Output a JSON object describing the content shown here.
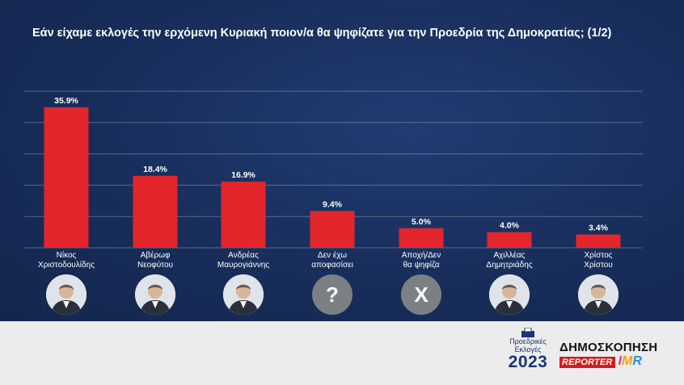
{
  "title": "Εάν είχαμε εκλογές την ερχόμενη Κυριακή ποιον/α θα ψηφίζατε για την Προεδρία της Δημοκρατίας; (1/2)",
  "colors": {
    "bar": "#e2262b",
    "background": "#182d5a",
    "grid": "#ffffff",
    "footer": "#ececec"
  },
  "chart_data": {
    "type": "bar",
    "title": "Εάν είχαμε εκλογές την ερχόμενη Κυριακή ποιον/α θα ψηφίζατε για την Προεδρία της Δημοκρατίας; (1/2)",
    "categories": [
      [
        "Νίκος",
        "Χριστοδουλίδης"
      ],
      [
        "Αβέρωφ",
        "Νεοφύτου"
      ],
      [
        "Ανδρέας",
        "Μαυρογιάννης"
      ],
      [
        "Δεν έχω",
        "αποφασίσει"
      ],
      [
        "Αποχή/Δεν",
        "θα ψηφίζα"
      ],
      [
        "Αχιλλέας",
        "Δημητριάδης"
      ],
      [
        "Χρίστος",
        "Χρίστου"
      ]
    ],
    "values": [
      35.9,
      18.4,
      16.9,
      9.4,
      5.0,
      4.0,
      3.4
    ],
    "labels": [
      "35.9%",
      "18.4%",
      "16.9%",
      "9.4%",
      "5.0%",
      "4.0%",
      "3.4%"
    ],
    "ylim": [
      0,
      40
    ],
    "grid": true,
    "xlabel": "",
    "ylabel": ""
  },
  "markers": [
    {
      "kind": "photo",
      "icon": "candidate-photo-icon"
    },
    {
      "kind": "photo",
      "icon": "candidate-photo-icon"
    },
    {
      "kind": "photo",
      "icon": "candidate-photo-icon"
    },
    {
      "kind": "symbol",
      "symbol": "?",
      "icon": "question-mark-icon"
    },
    {
      "kind": "symbol",
      "symbol": "X",
      "icon": "x-mark-icon"
    },
    {
      "kind": "photo",
      "icon": "candidate-photo-icon"
    },
    {
      "kind": "photo",
      "icon": "candidate-photo-icon"
    }
  ],
  "footer": {
    "election_logo": {
      "line1": "Προεδρικές",
      "line2": "Εκλογές",
      "year": "2023"
    },
    "poll_word": "ΔΗΜΟΣΚΟΠΗΣΗ",
    "reporter": "REPORTER",
    "imr": {
      "i": "I",
      "m": "M",
      "r": "R"
    }
  }
}
